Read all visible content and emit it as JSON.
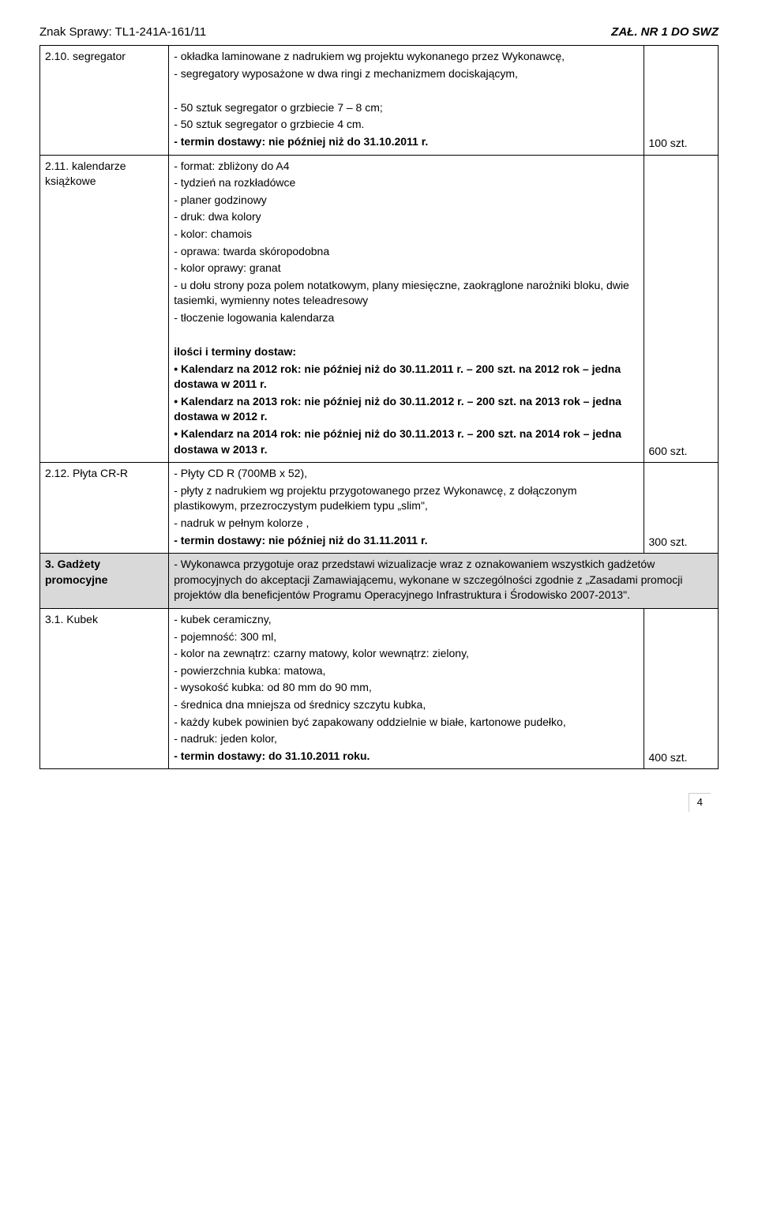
{
  "header": {
    "case_label": "Znak Sprawy: TL1-241A-161/11",
    "attachment_label": "ZAŁ. NR 1 DO SWZ"
  },
  "rows": [
    {
      "id": "row-2-10",
      "left": "2.10. segregator",
      "mid": "- okładka laminowane z nadrukiem wg projektu wykonanego przez Wykonawcę,\n- segregatory wyposażone w dwa ringi z mechanizmem dociskającym,\n\n- 50 sztuk segregator o grzbiecie 7 – 8 cm;\n- 50 sztuk segregator o grzbiecie 4 cm.\n- termin dostawy: nie później niż do 31.10.2011 r.",
      "bold_lines": [
        5
      ],
      "right": "100 szt."
    },
    {
      "id": "row-2-11",
      "left": "2.11. kalendarze książkowe",
      "mid": "- format: zbliżony do A4\n- tydzień na rozkładówce\n- planer godzinowy\n- druk: dwa kolory\n- kolor: chamois\n- oprawa: twarda skóropodobna\n- kolor oprawy: granat\n- u dołu strony poza polem notatkowym, plany miesięczne, zaokrąglone narożniki bloku, dwie tasiemki, wymienny notes teleadresowy\n- tłoczenie logowania kalendarza\n\nilości i terminy dostaw:\n• Kalendarz na 2012 rok: nie później niż do 30.11.2011 r. – 200 szt. na 2012 rok – jedna dostawa w 2011 r.\n• Kalendarz na 2013 rok: nie później niż do 30.11.2012 r. – 200 szt. na 2013 rok – jedna dostawa w 2012 r.\n• Kalendarz na 2014 rok: nie później niż do 30.11.2013 r. – 200 szt. na 2014 rok – jedna dostawa w 2013 r.",
      "bold_lines": [
        10,
        11,
        12,
        13
      ],
      "right": "600 szt."
    },
    {
      "id": "row-2-12",
      "left": "2.12. Płyta CR-R",
      "mid": "- Płyty CD R (700MB x 52),\n- płyty z nadrukiem wg projektu przygotowanego przez Wykonawcę, z dołączonym plastikowym, przezroczystym pudełkiem typu „slim\",\n- nadruk w pełnym kolorze ,\n- termin dostawy: nie później niż do 31.11.2011 r.",
      "bold_lines": [
        3
      ],
      "right": "300 szt."
    },
    {
      "id": "row-3",
      "shaded": true,
      "left": "3. Gadżety promocyjne",
      "left_bold": true,
      "mid": "- Wykonawca przygotuje oraz przedstawi wizualizacje wraz z oznakowaniem wszystkich gadżetów promocyjnych do akceptacji Zamawiającemu, wykonane w szczególności zgodnie z „Zasadami promocji projektów dla beneficjentów Programu Operacyjnego Infrastruktura i Środowisko 2007-2013\".",
      "bold_lines": [],
      "right": "",
      "merge_right": true
    },
    {
      "id": "row-3-1",
      "left": "3.1. Kubek",
      "mid": "- kubek ceramiczny,\n- pojemność: 300 ml,\n- kolor na zewnątrz: czarny matowy, kolor wewnątrz: zielony,\n- powierzchnia kubka: matowa,\n- wysokość kubka: od 80 mm do 90 mm,\n- średnica dna mniejsza od średnicy szczytu kubka,\n- każdy kubek powinien być zapakowany oddzielnie w białe, kartonowe pudełko,\n- nadruk: jeden kolor,\n- termin dostawy: do 31.10.2011 roku.",
      "bold_lines": [
        8
      ],
      "right": "400 szt."
    }
  ],
  "page_number": "4"
}
